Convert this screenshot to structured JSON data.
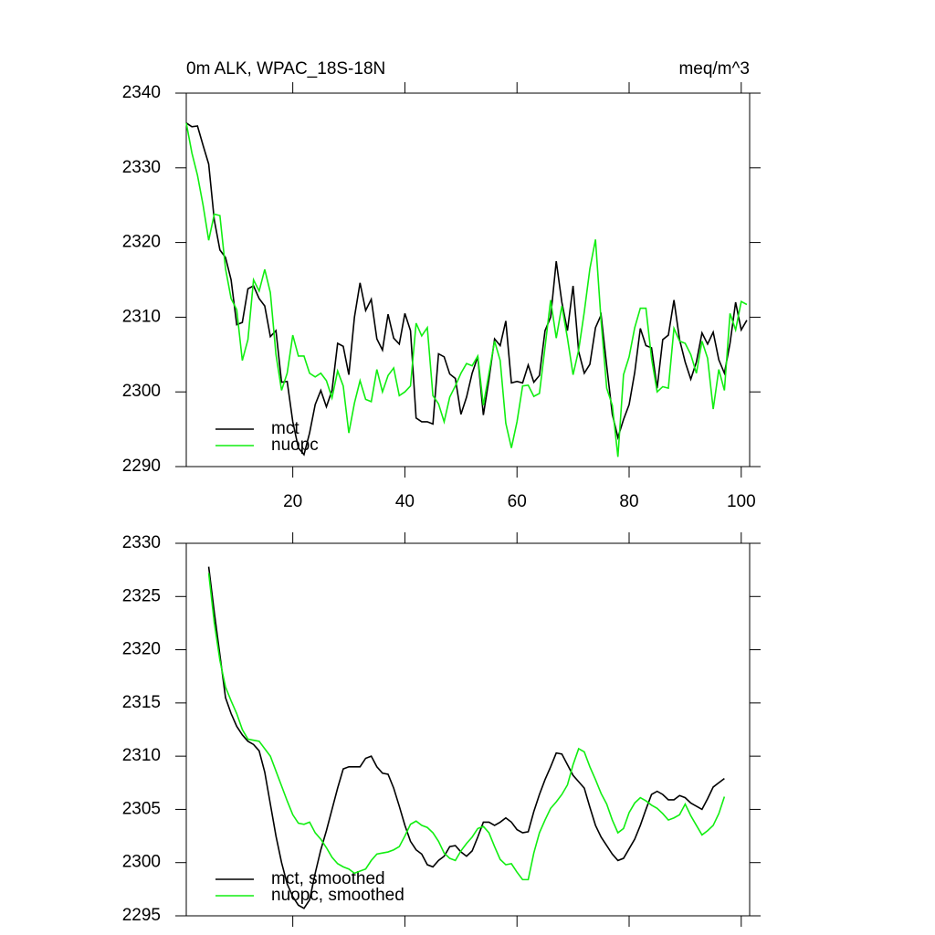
{
  "chart_data": [
    {
      "type": "line",
      "title": "0m ALK, WPAC_18S-18N",
      "units": "meq/m^3",
      "x": [
        1,
        2,
        3,
        4,
        5,
        6,
        7,
        8,
        9,
        10,
        11,
        12,
        13,
        14,
        15,
        16,
        17,
        18,
        19,
        20,
        21,
        22,
        23,
        24,
        25,
        26,
        27,
        28,
        29,
        30,
        31,
        32,
        33,
        34,
        35,
        36,
        37,
        38,
        39,
        40,
        41,
        42,
        43,
        44,
        45,
        46,
        47,
        48,
        49,
        50,
        51,
        52,
        53,
        54,
        55,
        56,
        57,
        58,
        59,
        60,
        61,
        62,
        63,
        64,
        65,
        66,
        67,
        68,
        69,
        70,
        71,
        72,
        73,
        74,
        75,
        76,
        77,
        78,
        79,
        80,
        81,
        82,
        83,
        84,
        85,
        86,
        87,
        88,
        89,
        90,
        91,
        92,
        93,
        94,
        95,
        96,
        97,
        98,
        99,
        100,
        101
      ],
      "xlim": [
        1,
        101.5
      ],
      "xticks": [
        20,
        40,
        60,
        80,
        100
      ],
      "ylim": [
        2290,
        2340
      ],
      "yticks": [
        2290,
        2300,
        2310,
        2320,
        2330,
        2340
      ],
      "series": [
        {
          "name": "mct",
          "color": "#000000",
          "values": [
            2336,
            2335.5,
            2335.6,
            2333,
            2330.5,
            2323,
            2319,
            2318,
            2315,
            2309,
            2309.3,
            2313.8,
            2314.2,
            2312.5,
            2311.5,
            2307.4,
            2308.2,
            2301.3,
            2301.4,
            2296,
            2292.5,
            2291.6,
            2294.5,
            2298.3,
            2300.2,
            2298,
            2300.2,
            2306.5,
            2306.1,
            2302.3,
            2310,
            2314.6,
            2310.9,
            2312.4,
            2307.1,
            2305.6,
            2310.4,
            2307.2,
            2306.4,
            2310.5,
            2308.2,
            2296.5,
            2296,
            2296,
            2295.7,
            2305.1,
            2304.7,
            2302.4,
            2301.8,
            2297,
            2299.3,
            2302.5,
            2304.7,
            2296.9,
            2301.7,
            2307.1,
            2306.2,
            2309.5,
            2301.2,
            2301.4,
            2301.2,
            2303.6,
            2301.3,
            2302.2,
            2308.2,
            2310,
            2317.5,
            2312,
            2308.2,
            2314.2,
            2305.4,
            2302.5,
            2303.7,
            2308.6,
            2310.3,
            2303.5,
            2297,
            2293.9,
            2296.3,
            2298.3,
            2302.6,
            2308.5,
            2306.2,
            2305.9,
            2300.5,
            2307,
            2307.6,
            2312.3,
            2307,
            2304,
            2301.7,
            2304,
            2307.9,
            2306.4,
            2308,
            2304.3,
            2302.5,
            2306.5,
            2312,
            2308.3,
            2309.6
          ]
        },
        {
          "name": "nuopc",
          "color": "#11ee11",
          "values": [
            2336,
            2332,
            2329,
            2325,
            2320.3,
            2323.8,
            2323.6,
            2316.5,
            2312.5,
            2311,
            2304.2,
            2307,
            2315,
            2313.5,
            2316.4,
            2313.3,
            2305,
            2300.2,
            2302.5,
            2307.6,
            2304.8,
            2304.8,
            2302.5,
            2302,
            2302.5,
            2301.5,
            2299.2,
            2302.8,
            2300.8,
            2294.5,
            2298.5,
            2301.5,
            2299,
            2298.7,
            2303,
            2300,
            2302.2,
            2303.2,
            2299.5,
            2300,
            2300.8,
            2309.2,
            2307.5,
            2308.6,
            2299.5,
            2298.4,
            2296,
            2299.3,
            2300.8,
            2302.5,
            2303.8,
            2303.5,
            2304.8,
            2298.2,
            2302.5,
            2306.8,
            2304.2,
            2295.8,
            2292.5,
            2296,
            2300.8,
            2300.9,
            2299.4,
            2299.8,
            2306,
            2312.3,
            2307.2,
            2311.5,
            2307.2,
            2302.3,
            2305.6,
            2310.7,
            2316.5,
            2320.4,
            2309.5,
            2300.5,
            2298.2,
            2291.3,
            2302.3,
            2304.7,
            2308.6,
            2311.2,
            2311.2,
            2304.5,
            2300,
            2300.7,
            2300.5,
            2308.5,
            2306.8,
            2306.5,
            2305,
            2302.5,
            2306.8,
            2304.5,
            2297.7,
            2303,
            2300.2,
            2310.5,
            2308.3,
            2312.1,
            2311.7
          ]
        }
      ]
    },
    {
      "type": "line",
      "x": [
        5,
        6,
        7,
        8,
        9,
        10,
        11,
        12,
        13,
        14,
        15,
        16,
        17,
        18,
        19,
        20,
        21,
        22,
        23,
        24,
        25,
        26,
        27,
        28,
        29,
        30,
        31,
        32,
        33,
        34,
        35,
        36,
        37,
        38,
        39,
        40,
        41,
        42,
        43,
        44,
        45,
        46,
        47,
        48,
        49,
        50,
        51,
        52,
        53,
        54,
        55,
        56,
        57,
        58,
        59,
        60,
        61,
        62,
        63,
        64,
        65,
        66,
        67,
        68,
        69,
        70,
        71,
        72,
        73,
        74,
        75,
        76,
        77,
        78,
        79,
        80,
        81,
        82,
        83,
        84,
        85,
        86,
        87,
        88,
        89,
        90,
        91,
        92,
        93,
        94,
        95,
        96,
        97
      ],
      "xlim": [
        1,
        101.5
      ],
      "xticks": [
        20,
        40,
        60,
        80,
        100
      ],
      "ylim": [
        2295,
        2330
      ],
      "yticks": [
        2295,
        2300,
        2305,
        2310,
        2315,
        2320,
        2325,
        2330
      ],
      "series": [
        {
          "name": "mct, smoothed",
          "color": "#000000",
          "values": [
            2327.8,
            2323.5,
            2319.5,
            2315.5,
            2314,
            2312.8,
            2312,
            2311.4,
            2311.1,
            2310.5,
            2308.5,
            2305.5,
            2302.5,
            2300,
            2298,
            2296.8,
            2296,
            2295.7,
            2296.5,
            2299,
            2301.2,
            2303,
            2305,
            2307,
            2308.8,
            2309,
            2309,
            2309,
            2309.8,
            2310,
            2309,
            2308.4,
            2308.3,
            2307,
            2305.3,
            2303.5,
            2302,
            2301.2,
            2300.8,
            2299.8,
            2299.6,
            2300.2,
            2300.6,
            2301.5,
            2301.6,
            2301,
            2300.6,
            2301.1,
            2302.4,
            2303.8,
            2303.8,
            2303.5,
            2303.8,
            2304.2,
            2303.8,
            2303.1,
            2302.8,
            2302.9,
            2304.8,
            2306.4,
            2307.8,
            2309,
            2310.3,
            2310.2,
            2309.2,
            2308.2,
            2307.6,
            2307,
            2305.2,
            2303.5,
            2302.4,
            2301.6,
            2300.8,
            2300.2,
            2300.4,
            2301.3,
            2302.2,
            2303.5,
            2305,
            2306.4,
            2306.7,
            2306.4,
            2305.9,
            2305.9,
            2306.3,
            2306.1,
            2305.6,
            2305.3,
            2305,
            2306,
            2307.1,
            2307.5,
            2307.9
          ]
        },
        {
          "name": "nuopc, smoothed",
          "color": "#11ee11",
          "values": [
            2327.2,
            2322.5,
            2319,
            2316.5,
            2315.2,
            2314,
            2312.5,
            2311.6,
            2311.5,
            2311.4,
            2310.7,
            2310,
            2308.6,
            2307.2,
            2305.8,
            2304.5,
            2303.7,
            2303.6,
            2303.8,
            2302.8,
            2302.2,
            2301.4,
            2300.5,
            2299.9,
            2299.6,
            2299.4,
            2299,
            2299.2,
            2299.4,
            2300.2,
            2300.8,
            2300.9,
            2301,
            2301.2,
            2301.5,
            2302.5,
            2303.6,
            2303.9,
            2303.5,
            2303.3,
            2302.8,
            2302,
            2300.9,
            2300.4,
            2300.2,
            2301.1,
            2301.8,
            2302.4,
            2303.2,
            2303.4,
            2302.8,
            2301.5,
            2300.3,
            2299.8,
            2299.9,
            2299.1,
            2298.4,
            2298.4,
            2300.9,
            2302.8,
            2304,
            2305.1,
            2305.7,
            2306.4,
            2307.3,
            2309.2,
            2310.7,
            2310.4,
            2309,
            2307.8,
            2306.5,
            2305.5,
            2304,
            2302.8,
            2303.2,
            2304.7,
            2305.6,
            2306.1,
            2305.8,
            2305.4,
            2305.1,
            2304.6,
            2304,
            2304.2,
            2304.5,
            2305.5,
            2304.4,
            2303.5,
            2302.6,
            2303,
            2303.5,
            2304.6,
            2306.2
          ]
        }
      ]
    }
  ]
}
